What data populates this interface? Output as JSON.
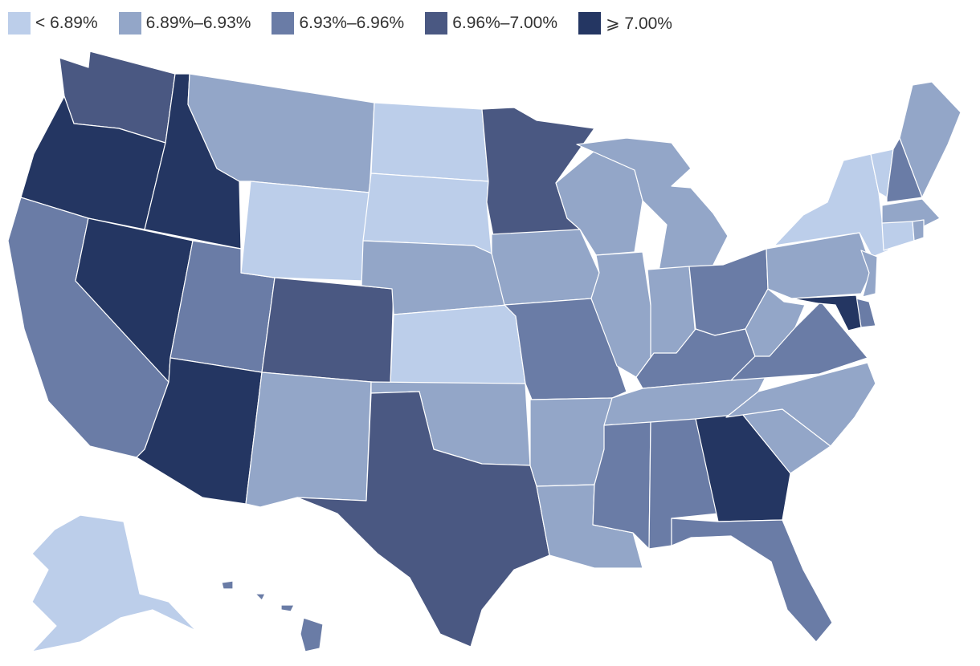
{
  "legend": {
    "items": [
      {
        "label": "< 6.89%",
        "color": "#bcceea",
        "class": "b1"
      },
      {
        "label": "6.89%–6.93%",
        "color": "#93a6c8",
        "class": "b2"
      },
      {
        "label": "6.93%–6.96%",
        "color": "#6a7ca6",
        "class": "b3"
      },
      {
        "label": "6.96%–7.00%",
        "color": "#4a5882",
        "class": "b4"
      },
      {
        "label": "⩾ 7.00%",
        "color": "#243662",
        "class": "b5"
      }
    ]
  },
  "states": [
    {
      "id": "WA",
      "bin": 4
    },
    {
      "id": "OR",
      "bin": 5
    },
    {
      "id": "CA",
      "bin": 3
    },
    {
      "id": "ID",
      "bin": 5
    },
    {
      "id": "NV",
      "bin": 5
    },
    {
      "id": "AZ",
      "bin": 5
    },
    {
      "id": "UT",
      "bin": 3
    },
    {
      "id": "MT",
      "bin": 2
    },
    {
      "id": "WY",
      "bin": 1
    },
    {
      "id": "CO",
      "bin": 4
    },
    {
      "id": "NM",
      "bin": 2
    },
    {
      "id": "ND",
      "bin": 1
    },
    {
      "id": "SD",
      "bin": 1
    },
    {
      "id": "NE",
      "bin": 2
    },
    {
      "id": "KS",
      "bin": 1
    },
    {
      "id": "OK",
      "bin": 2
    },
    {
      "id": "TX",
      "bin": 4
    },
    {
      "id": "MN",
      "bin": 4
    },
    {
      "id": "IA",
      "bin": 2
    },
    {
      "id": "MO",
      "bin": 3
    },
    {
      "id": "AR",
      "bin": 2
    },
    {
      "id": "LA",
      "bin": 2
    },
    {
      "id": "WI",
      "bin": 2
    },
    {
      "id": "IL",
      "bin": 2
    },
    {
      "id": "MI",
      "bin": 2
    },
    {
      "id": "IN",
      "bin": 2
    },
    {
      "id": "OH",
      "bin": 3
    },
    {
      "id": "KY",
      "bin": 3
    },
    {
      "id": "TN",
      "bin": 2
    },
    {
      "id": "MS",
      "bin": 3
    },
    {
      "id": "AL",
      "bin": 3
    },
    {
      "id": "GA",
      "bin": 5
    },
    {
      "id": "FL",
      "bin": 3
    },
    {
      "id": "SC",
      "bin": 2
    },
    {
      "id": "NC",
      "bin": 2
    },
    {
      "id": "VA",
      "bin": 3
    },
    {
      "id": "WV",
      "bin": 2
    },
    {
      "id": "PA",
      "bin": 2
    },
    {
      "id": "NY",
      "bin": 1
    },
    {
      "id": "VT",
      "bin": 1
    },
    {
      "id": "NH",
      "bin": 3
    },
    {
      "id": "ME",
      "bin": 2
    },
    {
      "id": "MA",
      "bin": 2
    },
    {
      "id": "RI",
      "bin": 2
    },
    {
      "id": "CT",
      "bin": 1
    },
    {
      "id": "NJ",
      "bin": 2
    },
    {
      "id": "DE",
      "bin": 3
    },
    {
      "id": "MD",
      "bin": 5
    },
    {
      "id": "AK",
      "bin": 1
    },
    {
      "id": "HI",
      "bin": 3
    }
  ]
}
